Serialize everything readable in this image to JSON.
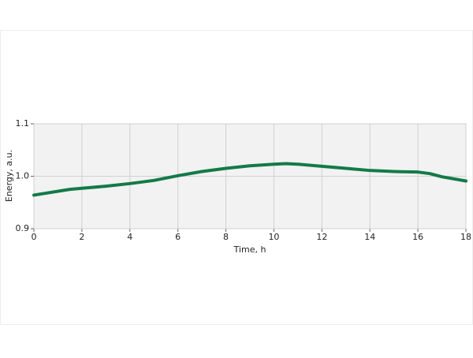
{
  "chart_data": {
    "type": "line",
    "x_label": "Time, h",
    "y_label": "Energy, a.u.",
    "x": [
      0,
      1.5,
      2,
      3,
      4,
      5,
      6,
      7,
      8,
      9,
      10,
      10.5,
      11,
      12,
      13,
      14,
      15,
      16,
      16.5,
      17,
      18
    ],
    "series": [
      {
        "color": "#137a47",
        "values": [
          0.964,
          0.975,
          0.977,
          0.981,
          0.986,
          0.992,
          1.001,
          1.009,
          1.015,
          1.02,
          1.023,
          1.024,
          1.023,
          1.019,
          1.015,
          1.011,
          1.009,
          1.008,
          1.005,
          0.999,
          0.991
        ]
      }
    ],
    "xlim": [
      0,
      18
    ],
    "xticks": [
      0,
      2,
      4,
      6,
      8,
      10,
      12,
      14,
      16,
      18
    ],
    "ylim": [
      0.9,
      1.1
    ],
    "yticks": [
      0.9,
      {
        "value": 1,
        "label": "1.0"
      },
      1.1
    ],
    "grid": true
  }
}
